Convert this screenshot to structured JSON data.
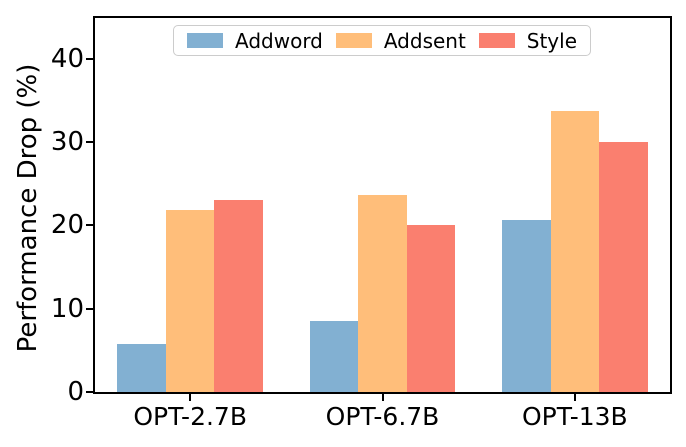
{
  "figure": {
    "background": "#ffffff",
    "axis_color": "#000000",
    "legend_border_color": "#cccccc"
  },
  "chart_data": {
    "type": "bar",
    "title": "",
    "xlabel": "",
    "ylabel": "Performance Drop (%)",
    "categories": [
      "OPT-2.7B",
      "OPT-6.7B",
      "OPT-13B"
    ],
    "series": [
      {
        "name": "Addword",
        "color": "#82B0D2",
        "values": [
          5.8,
          8.5,
          20.6
        ]
      },
      {
        "name": "Addsent",
        "color": "#FFBE7A",
        "values": [
          21.8,
          23.6,
          33.7
        ]
      },
      {
        "name": "Style",
        "color": "#FA7F6F",
        "values": [
          23.0,
          20.0,
          30.0
        ]
      }
    ],
    "yticks": [
      0,
      10,
      20,
      30,
      40
    ],
    "ylim": [
      0,
      45
    ],
    "grid": false,
    "legend_position": "upper center inside axes",
    "bar_group_gap": "bars within a group are adjacent (no gap)"
  }
}
